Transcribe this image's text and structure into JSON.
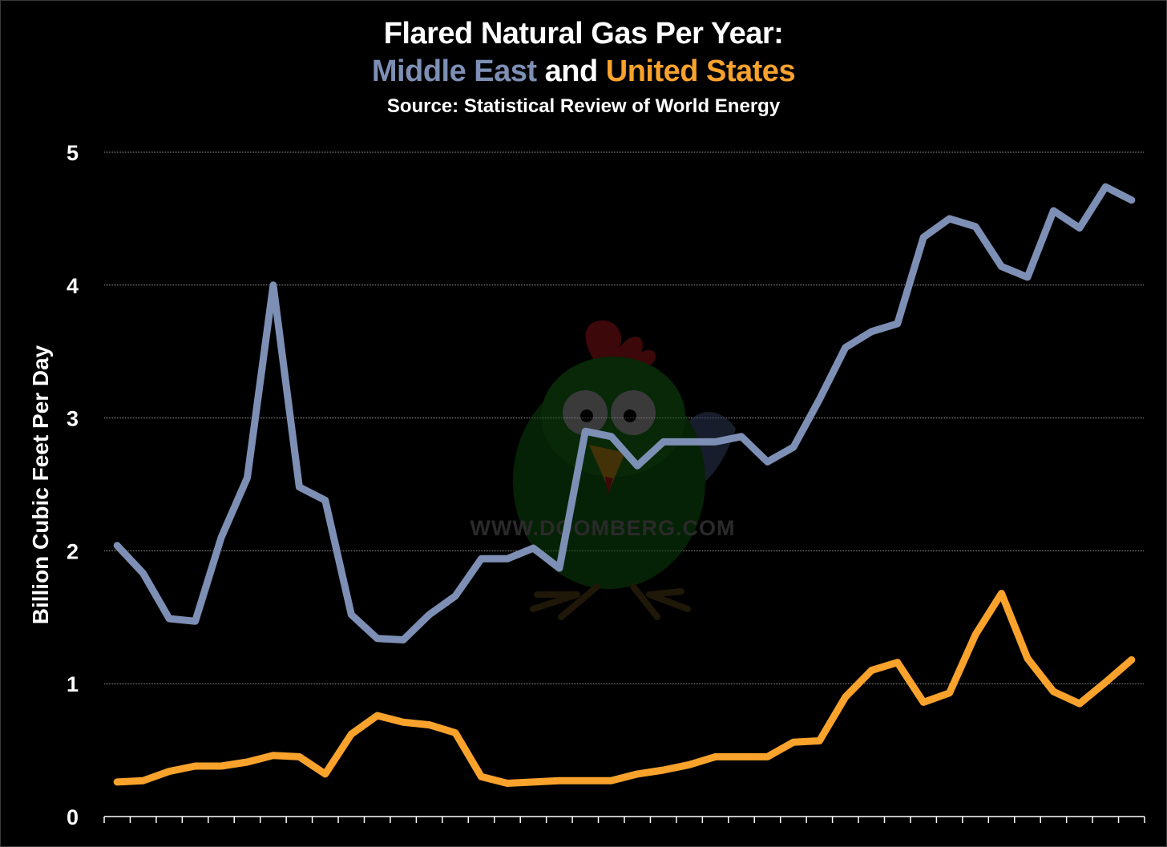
{
  "colors": {
    "background": "#000000",
    "middle_east": "#7d8fb4",
    "united_states": "#f9a22c",
    "text": "#ffffff",
    "grid": "#9a9a9a"
  },
  "watermark": {
    "text": "WWW.DOOMBERG.COM",
    "icon": "doomberg-chicken-icon"
  },
  "chart_data": {
    "type": "line",
    "title_line1": "Flared Natural Gas Per Year:",
    "title_series_1": "Middle East",
    "title_connector": "and",
    "title_series_2": "United States",
    "subtitle": "Source: Statistical Review of World Energy",
    "xlabel": "",
    "ylabel": "Billion Cubic Feet Per Day",
    "ylim": [
      0,
      5
    ],
    "yticks": [
      "0",
      "1",
      "2",
      "3",
      "4",
      "5"
    ],
    "grid": true,
    "x_ticks_count": 41,
    "series": [
      {
        "name": "Middle East",
        "color": "#7d8fb4",
        "values": [
          2.04,
          1.83,
          1.49,
          1.47,
          2.1,
          2.55,
          4.0,
          2.48,
          2.38,
          1.52,
          1.34,
          1.33,
          1.52,
          1.66,
          1.94,
          1.94,
          2.02,
          1.87,
          2.9,
          2.86,
          2.64,
          2.82,
          2.82,
          2.82,
          2.86,
          2.67,
          2.78,
          3.14,
          3.53,
          3.65,
          3.71,
          4.36,
          4.5,
          4.44,
          4.14,
          4.06,
          4.56,
          4.43,
          4.74,
          4.64
        ]
      },
      {
        "name": "United States",
        "color": "#f9a22c",
        "values": [
          0.26,
          0.27,
          0.34,
          0.38,
          0.38,
          0.41,
          0.46,
          0.45,
          0.32,
          0.62,
          0.76,
          0.71,
          0.69,
          0.63,
          0.3,
          0.25,
          0.26,
          0.27,
          0.27,
          0.27,
          0.32,
          0.35,
          0.39,
          0.45,
          0.45,
          0.45,
          0.56,
          0.57,
          0.9,
          1.1,
          1.16,
          0.86,
          0.93,
          1.37,
          1.68,
          1.19,
          0.94,
          0.85,
          1.01,
          1.18
        ]
      }
    ]
  }
}
